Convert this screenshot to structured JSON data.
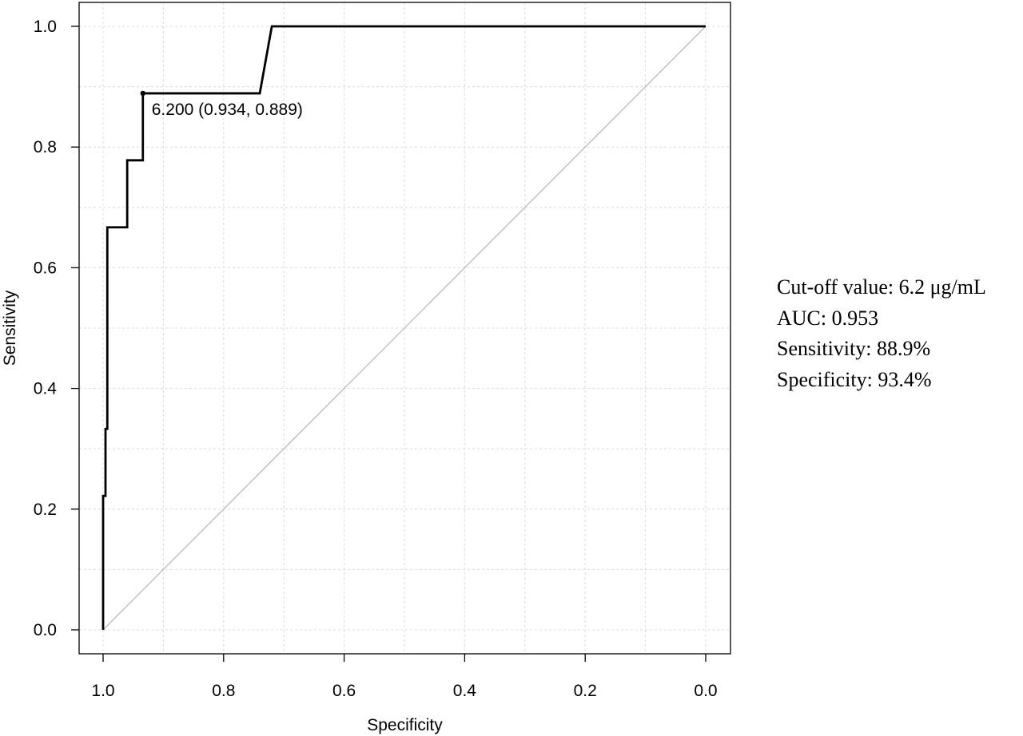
{
  "chart_data": {
    "type": "line",
    "xlabel": "Specificity",
    "ylabel": "Sensitivity",
    "xlim": [
      1.04,
      -0.04
    ],
    "ylim": [
      -0.04,
      1.04
    ],
    "x_reversed": true,
    "grid": true,
    "x_ticks": [
      "1.0",
      "0.8",
      "0.6",
      "0.4",
      "0.2",
      "0.0"
    ],
    "y_ticks": [
      "0.0",
      "0.2",
      "0.4",
      "0.6",
      "0.8",
      "1.0"
    ],
    "series": [
      {
        "specificity": [
          1.0,
          1.0,
          0.996,
          0.996,
          0.993,
          0.993,
          0.96,
          0.96,
          0.934,
          0.934,
          0.74,
          0.72,
          0.0
        ],
        "sensitivity": [
          0.0,
          0.222,
          0.222,
          0.333,
          0.333,
          0.667,
          0.667,
          0.778,
          0.778,
          0.889,
          0.889,
          1.0,
          1.0
        ],
        "color": "#000000"
      }
    ],
    "reference_line": {
      "from": [
        1.0,
        0.0
      ],
      "to": [
        0.0,
        1.0
      ],
      "color": "#bbbbbb"
    },
    "threshold_point": {
      "specificity": 0.934,
      "sensitivity": 0.889,
      "label": "6.200 (0.934, 0.889)"
    }
  },
  "stats": {
    "cutoff": "Cut-off value:  6.2 μg/mL",
    "auc": "AUC: 0.953",
    "sensitivity": "Sensitivity:  88.9%",
    "specificity": "Specificity:  93.4%"
  }
}
